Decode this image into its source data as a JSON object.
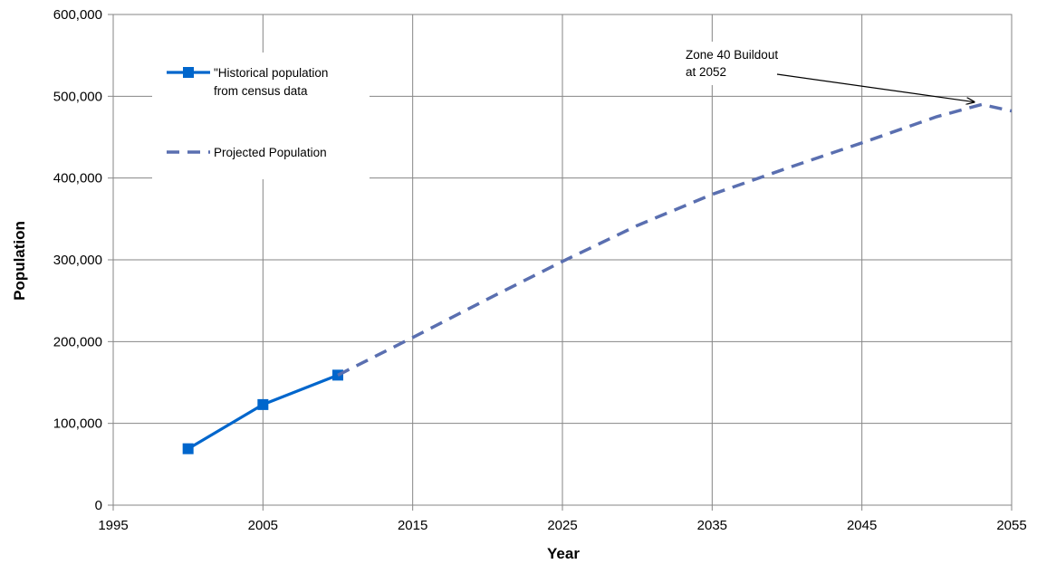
{
  "chart_data": {
    "type": "line",
    "xlabel": "Year",
    "ylabel": "Population",
    "xlim": [
      1995,
      2055
    ],
    "ylim": [
      0,
      600000
    ],
    "x_ticks": [
      "1995",
      "2005",
      "2015",
      "2025",
      "2035",
      "2045",
      "2055"
    ],
    "y_ticks": [
      "0",
      "100,000",
      "200,000",
      "300,000",
      "400,000",
      "500,000",
      "600,000"
    ],
    "grid": true,
    "legend_position": "top-left",
    "series": [
      {
        "name": "\"Historical population from census data",
        "legend_lines": [
          "\"Historical population",
          "from census data"
        ],
        "style": "solid",
        "marker": "square",
        "color": "#0066cc",
        "x": [
          2000,
          2005,
          2010
        ],
        "y": [
          69000,
          123000,
          159000
        ]
      },
      {
        "name": "Projected Population",
        "legend_lines": [
          "Projected Population"
        ],
        "style": "dashed",
        "marker": "none",
        "color": "#5a6fb0",
        "x": [
          2010,
          2015,
          2020,
          2025,
          2030,
          2035,
          2040,
          2045,
          2050,
          2053,
          2055
        ],
        "y": [
          159000,
          205000,
          252000,
          298000,
          342000,
          380000,
          412000,
          443000,
          475000,
          490000,
          482000
        ]
      }
    ],
    "annotations": [
      {
        "lines": [
          "Zone 40 Buildout",
          "at 2052"
        ],
        "arrow_to": {
          "x": 2052.5,
          "y": 493000
        }
      }
    ]
  }
}
